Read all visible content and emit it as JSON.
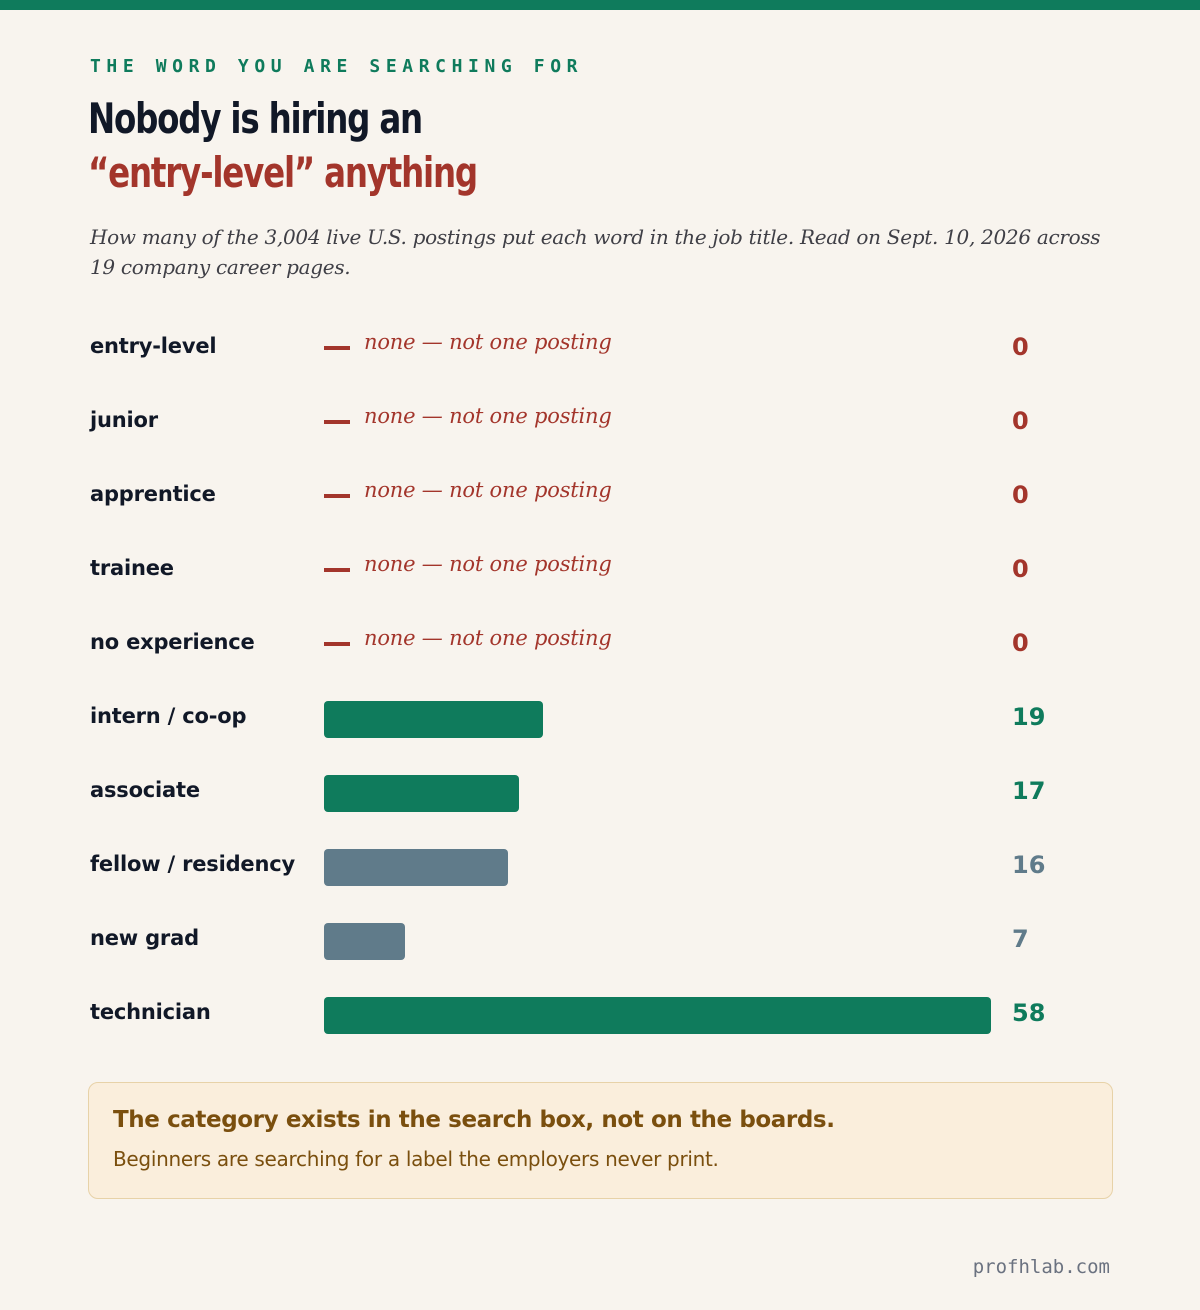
{
  "header": {
    "eyebrow": "THE WORD YOU ARE SEARCHING FOR",
    "headline_line1": "Nobody is hiring an",
    "headline_line2": "“entry-level” anything",
    "subtitle": "How many of the 3,004 live U.S. postings put each word in the job title. Read on Sept. 10, 2026 across 19 company career pages."
  },
  "chart_data": {
    "type": "bar",
    "orientation": "horizontal",
    "categories": [
      "entry-level",
      "junior",
      "apprentice",
      "trainee",
      "no experience",
      "intern / co-op",
      "associate",
      "fellow / residency",
      "new grad",
      "technician"
    ],
    "values": [
      0,
      0,
      0,
      0,
      0,
      19,
      17,
      16,
      7,
      58
    ],
    "value_labels": [
      "0",
      "0",
      "0",
      "0",
      "0",
      "19",
      "17",
      "16",
      "7",
      "58"
    ],
    "zero_label": "none — not one posting",
    "xlim": [
      0,
      58
    ],
    "grid": false,
    "colors": {
      "zero": "#a3352b",
      "green": "#0f7b5c",
      "slate": "#607b8a"
    },
    "bar_colors": [
      "#a3352b",
      "#a3352b",
      "#a3352b",
      "#a3352b",
      "#a3352b",
      "#0f7b5c",
      "#0f7b5c",
      "#607b8a",
      "#607b8a",
      "#0f7b5c"
    ]
  },
  "callout": {
    "title": "The category exists in the search box, not on the boards.",
    "body": "Beginners are searching for a label the employers never print."
  },
  "footer": {
    "site": "profhlab.com"
  }
}
